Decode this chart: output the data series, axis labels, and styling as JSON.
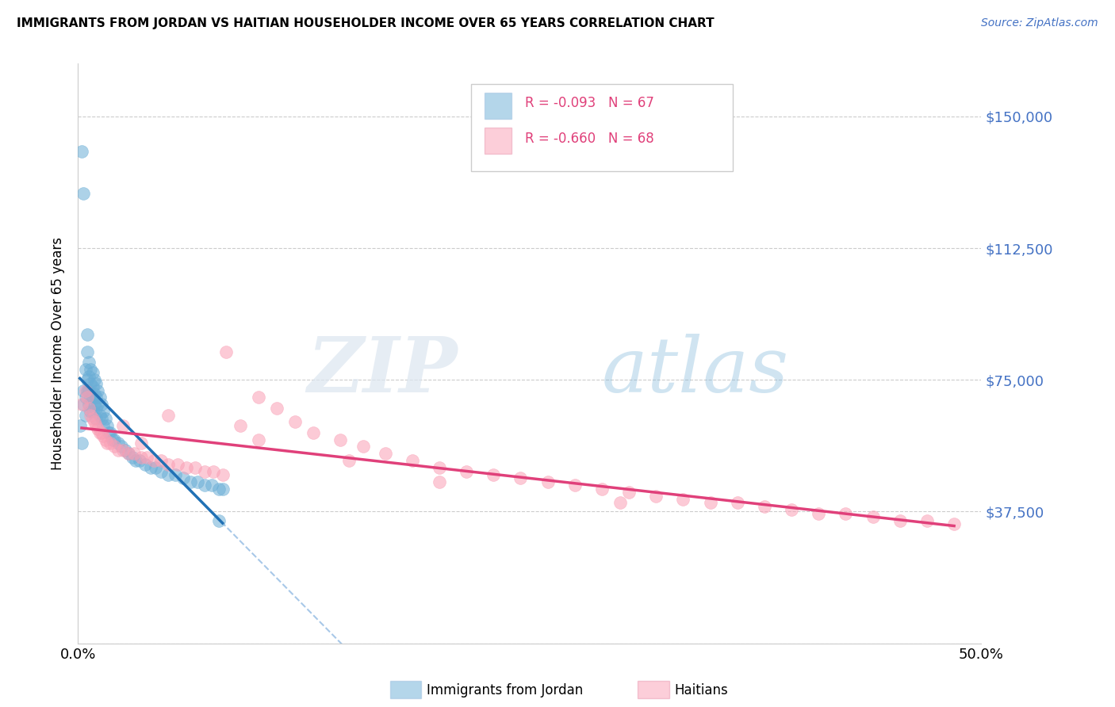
{
  "title": "IMMIGRANTS FROM JORDAN VS HAITIAN HOUSEHOLDER INCOME OVER 65 YEARS CORRELATION CHART",
  "source": "Source: ZipAtlas.com",
  "ylabel": "Householder Income Over 65 years",
  "xlim": [
    0.0,
    0.5
  ],
  "ylim": [
    0,
    165000
  ],
  "yticks": [
    0,
    37500,
    75000,
    112500,
    150000
  ],
  "ytick_labels": [
    "",
    "$37,500",
    "$75,000",
    "$112,500",
    "$150,000"
  ],
  "xticks": [
    0.0,
    0.1,
    0.2,
    0.3,
    0.4,
    0.5
  ],
  "xtick_labels": [
    "0.0%",
    "",
    "",
    "",
    "",
    "50.0%"
  ],
  "jordan_R": -0.093,
  "jordan_N": 67,
  "haitian_R": -0.66,
  "haitian_N": 68,
  "jordan_color": "#6baed6",
  "haitian_color": "#fa9fb5",
  "jordan_line_color": "#2171b5",
  "haitian_line_color": "#e0407a",
  "dashed_line_color": "#a8c8e8",
  "background_color": "#ffffff",
  "jordan_x": [
    0.001,
    0.002,
    0.002,
    0.003,
    0.003,
    0.003,
    0.004,
    0.004,
    0.004,
    0.005,
    0.005,
    0.005,
    0.005,
    0.006,
    0.006,
    0.006,
    0.006,
    0.007,
    0.007,
    0.007,
    0.007,
    0.008,
    0.008,
    0.008,
    0.008,
    0.009,
    0.009,
    0.009,
    0.01,
    0.01,
    0.01,
    0.01,
    0.011,
    0.011,
    0.012,
    0.012,
    0.013,
    0.013,
    0.014,
    0.014,
    0.015,
    0.016,
    0.017,
    0.018,
    0.019,
    0.02,
    0.022,
    0.024,
    0.026,
    0.028,
    0.03,
    0.032,
    0.034,
    0.037,
    0.04,
    0.043,
    0.046,
    0.05,
    0.054,
    0.058,
    0.062,
    0.066,
    0.07,
    0.074,
    0.078,
    0.078,
    0.08
  ],
  "jordan_y": [
    62000,
    57000,
    140000,
    128000,
    72000,
    68000,
    78000,
    70000,
    65000,
    88000,
    83000,
    75000,
    72000,
    80000,
    76000,
    72000,
    68000,
    78000,
    74000,
    70000,
    66000,
    77000,
    73000,
    70000,
    66000,
    75000,
    71000,
    68000,
    74000,
    70000,
    67000,
    64000,
    72000,
    68000,
    70000,
    65000,
    68000,
    64000,
    66000,
    62000,
    64000,
    62000,
    60000,
    60000,
    58000,
    58000,
    57000,
    56000,
    55000,
    54000,
    53000,
    52000,
    52000,
    51000,
    50000,
    50000,
    49000,
    48000,
    48000,
    47000,
    46000,
    46000,
    45000,
    45000,
    44000,
    35000,
    44000
  ],
  "haitian_x": [
    0.002,
    0.004,
    0.005,
    0.006,
    0.007,
    0.008,
    0.009,
    0.01,
    0.011,
    0.012,
    0.013,
    0.014,
    0.015,
    0.016,
    0.018,
    0.02,
    0.022,
    0.025,
    0.028,
    0.031,
    0.035,
    0.038,
    0.042,
    0.046,
    0.05,
    0.055,
    0.06,
    0.065,
    0.07,
    0.075,
    0.082,
    0.09,
    0.1,
    0.11,
    0.12,
    0.13,
    0.145,
    0.158,
    0.17,
    0.185,
    0.2,
    0.215,
    0.23,
    0.245,
    0.26,
    0.275,
    0.29,
    0.305,
    0.32,
    0.335,
    0.35,
    0.365,
    0.38,
    0.395,
    0.41,
    0.425,
    0.44,
    0.455,
    0.47,
    0.485,
    0.05,
    0.1,
    0.15,
    0.2,
    0.08,
    0.025,
    0.035,
    0.3
  ],
  "haitian_y": [
    68000,
    72000,
    70000,
    67000,
    65000,
    64000,
    63000,
    62000,
    61000,
    60000,
    60000,
    59000,
    58000,
    57000,
    57000,
    56000,
    55000,
    55000,
    54000,
    54000,
    53000,
    53000,
    52000,
    52000,
    51000,
    51000,
    50000,
    50000,
    49000,
    49000,
    83000,
    62000,
    70000,
    67000,
    63000,
    60000,
    58000,
    56000,
    54000,
    52000,
    50000,
    49000,
    48000,
    47000,
    46000,
    45000,
    44000,
    43000,
    42000,
    41000,
    40000,
    40000,
    39000,
    38000,
    37000,
    37000,
    36000,
    35000,
    35000,
    34000,
    65000,
    58000,
    52000,
    46000,
    48000,
    62000,
    57000,
    40000
  ]
}
